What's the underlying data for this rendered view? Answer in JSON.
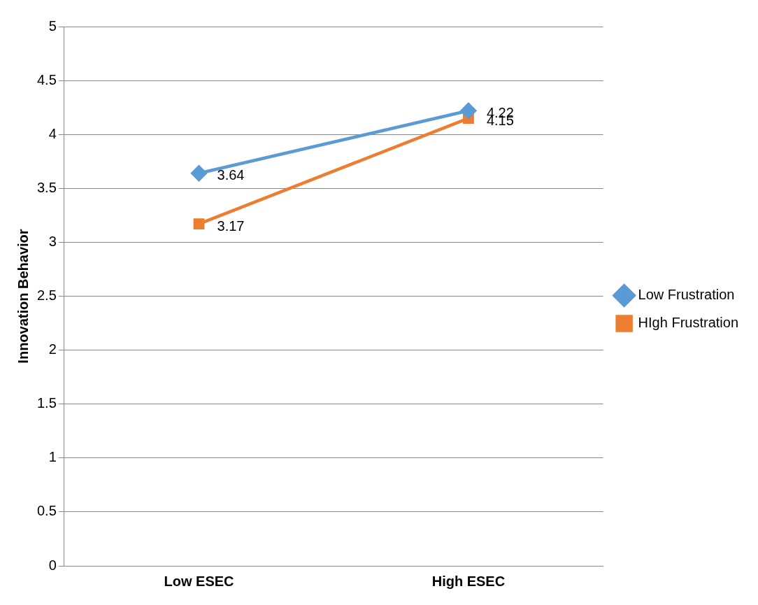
{
  "chart_data": {
    "type": "line",
    "ylabel": "Innovation Behavior",
    "categories": [
      "Low ESEC",
      "High ESEC"
    ],
    "series": [
      {
        "name": "Low Frustration",
        "color": "#5b9bd5",
        "values": [
          3.64,
          4.22
        ],
        "marker": "diamond"
      },
      {
        "name": "HIgh Frustration",
        "color": "#ed7d31",
        "values": [
          3.17,
          4.15
        ],
        "marker": "square"
      }
    ],
    "ylim": [
      0,
      5
    ],
    "yticks": [
      0,
      0.5,
      1,
      1.5,
      2,
      2.5,
      3,
      3.5,
      4,
      4.5,
      5
    ],
    "grid": "y",
    "legend": "right",
    "data_labels": true
  }
}
